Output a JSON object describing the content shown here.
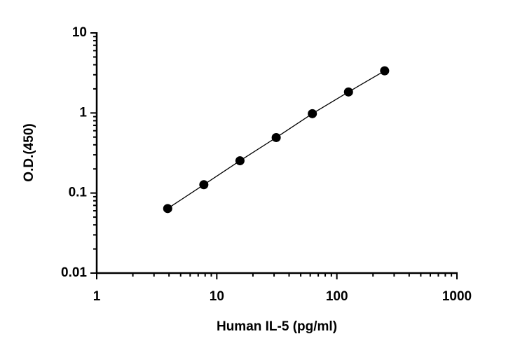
{
  "chart_data": {
    "type": "scatter",
    "x_label": "Human IL-5 (pg/ml)",
    "y_label": "O.D.(450)",
    "x": [
      3.9,
      7.8,
      15.6,
      31.25,
      62.5,
      125,
      250
    ],
    "values": [
      0.064,
      0.127,
      0.253,
      0.493,
      0.98,
      1.83,
      3.36
    ],
    "color": "#000000",
    "line": true,
    "xlog": true,
    "ylog": true,
    "xlim": [
      1,
      1000
    ],
    "ylim": [
      0.01,
      10
    ],
    "xticks": [
      1,
      10,
      100,
      1000
    ],
    "yticks": [
      0.01,
      0.1,
      1,
      10
    ],
    "xminorticks": [
      2,
      3,
      4,
      5,
      6,
      7,
      8,
      9,
      20,
      30,
      40,
      50,
      60,
      70,
      80,
      90,
      200,
      300,
      400,
      500,
      600,
      700,
      800,
      900
    ],
    "yminorticks": [
      0.02,
      0.03,
      0.04,
      0.05,
      0.06,
      0.07,
      0.08,
      0.09,
      0.2,
      0.3,
      0.4,
      0.5,
      0.6,
      0.7,
      0.8,
      0.9,
      2,
      3,
      4,
      5,
      6,
      7,
      8,
      9
    ],
    "grid": false
  }
}
